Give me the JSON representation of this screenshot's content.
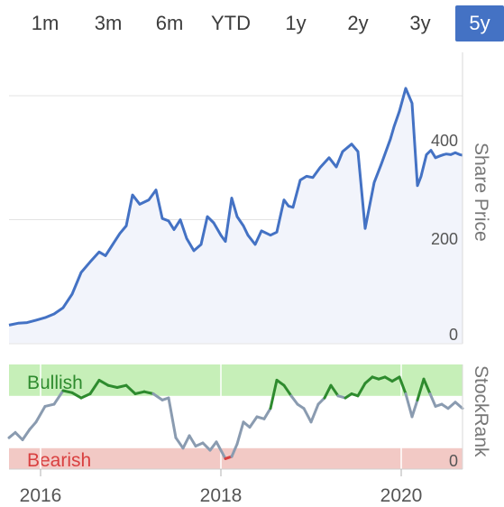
{
  "range_tabs": {
    "items": [
      {
        "label": "1m",
        "active": false
      },
      {
        "label": "3m",
        "active": false
      },
      {
        "label": "6m",
        "active": false
      },
      {
        "label": "YTD",
        "active": false
      },
      {
        "label": "1y",
        "active": false
      },
      {
        "label": "2y",
        "active": false
      },
      {
        "label": "3y",
        "active": false
      },
      {
        "label": "5y",
        "active": true
      }
    ]
  },
  "colors": {
    "price_line": "#4472c4",
    "price_area": "#f2f4fb",
    "bullish_band": "#c6efb8",
    "bearish_band": "#f2c9c5",
    "neutral_line": "#8a9bb0",
    "bullish_line": "#2e8b2e",
    "bearish_line": "#d94040",
    "bullish_text": "#2e8b2e",
    "bearish_text": "#d94040",
    "active_tab": "#4472c4"
  },
  "chart_data": [
    {
      "type": "line",
      "ylabel": "Share Price",
      "ylim": [
        0,
        470
      ],
      "yticks": [
        0,
        200,
        400
      ],
      "x_range": [
        2015.65,
        2020.68
      ],
      "series": [
        {
          "x": [
            2015.65,
            2015.75,
            2015.85,
            2015.95,
            2016.05,
            2016.15,
            2016.25,
            2016.35,
            2016.45,
            2016.55,
            2016.65,
            2016.72,
            2016.8,
            2016.88,
            2016.95,
            2017.02,
            2017.1,
            2017.2,
            2017.28,
            2017.35,
            2017.42,
            2017.48,
            2017.55,
            2017.62,
            2017.7,
            2017.78,
            2017.85,
            2017.92,
            2018.0,
            2018.05,
            2018.12,
            2018.18,
            2018.25,
            2018.3,
            2018.38,
            2018.45,
            2018.55,
            2018.62,
            2018.7,
            2018.75,
            2018.8,
            2018.88,
            2018.95,
            2019.02,
            2019.1,
            2019.2,
            2019.28,
            2019.35,
            2019.45,
            2019.52,
            2019.6,
            2019.7,
            2019.78,
            2019.88,
            2019.92,
            2019.98,
            2020.05,
            2020.12,
            2020.18,
            2020.22,
            2020.28,
            2020.33,
            2020.38,
            2020.43,
            2020.47,
            2020.5,
            2020.55,
            2020.6,
            2020.65,
            2020.68
          ],
          "y": [
            30,
            33,
            34,
            38,
            42,
            48,
            58,
            80,
            115,
            132,
            148,
            142,
            160,
            178,
            190,
            240,
            225,
            232,
            248,
            202,
            198,
            184,
            200,
            170,
            150,
            160,
            205,
            195,
            175,
            165,
            235,
            205,
            190,
            175,
            160,
            182,
            175,
            180,
            232,
            222,
            220,
            264,
            270,
            268,
            284,
            300,
            285,
            310,
            322,
            310,
            186,
            260,
            290,
            330,
            350,
            375,
            412,
            388,
            255,
            270,
            305,
            312,
            300,
            303,
            305,
            306,
            305,
            308,
            305,
            304
          ],
          "name": ""
        }
      ]
    },
    {
      "type": "line",
      "ylabel": "StockRank",
      "bands": [
        {
          "label": "Bullish",
          "from": 70,
          "to": 100
        },
        {
          "label": "Bearish",
          "from": 0,
          "to": 20
        }
      ],
      "ylim": [
        0,
        100
      ],
      "yticks": [
        0
      ],
      "xticks": [
        2016,
        2018,
        2020
      ],
      "x_range": [
        2015.65,
        2020.68
      ],
      "series": [
        {
          "x": [
            2015.65,
            2015.72,
            2015.8,
            2015.88,
            2015.95,
            2016.05,
            2016.15,
            2016.25,
            2016.35,
            2016.45,
            2016.55,
            2016.65,
            2016.75,
            2016.85,
            2016.95,
            2017.05,
            2017.15,
            2017.25,
            2017.35,
            2017.42,
            2017.5,
            2017.58,
            2017.65,
            2017.72,
            2017.8,
            2017.88,
            2017.95,
            2018.05,
            2018.12,
            2018.18,
            2018.25,
            2018.32,
            2018.4,
            2018.48,
            2018.55,
            2018.62,
            2018.7,
            2018.78,
            2018.85,
            2018.92,
            2019.0,
            2019.08,
            2019.15,
            2019.22,
            2019.3,
            2019.38,
            2019.45,
            2019.52,
            2019.6,
            2019.68,
            2019.75,
            2019.82,
            2019.9,
            2019.98,
            2020.05,
            2020.12,
            2020.18,
            2020.25,
            2020.32,
            2020.38,
            2020.45,
            2020.52,
            2020.6,
            2020.68
          ],
          "y": [
            30,
            35,
            28,
            38,
            45,
            60,
            62,
            75,
            73,
            68,
            72,
            85,
            80,
            78,
            80,
            72,
            74,
            72,
            66,
            68,
            30,
            20,
            32,
            22,
            25,
            18,
            26,
            10,
            12,
            24,
            45,
            40,
            50,
            48,
            58,
            85,
            80,
            70,
            62,
            58,
            45,
            62,
            68,
            80,
            70,
            68,
            72,
            70,
            82,
            88,
            86,
            88,
            84,
            88,
            72,
            50,
            66,
            86,
            72,
            60,
            62,
            58,
            64,
            58
          ],
          "name": ""
        }
      ]
    }
  ],
  "bands_text": {
    "bullish": "Bullish",
    "bearish": "Bearish"
  },
  "x_tick_labels": [
    "2016",
    "2018",
    "2020"
  ],
  "price_tick_labels": [
    "0",
    "200",
    "400"
  ],
  "rank_tick_labels": [
    "0"
  ]
}
